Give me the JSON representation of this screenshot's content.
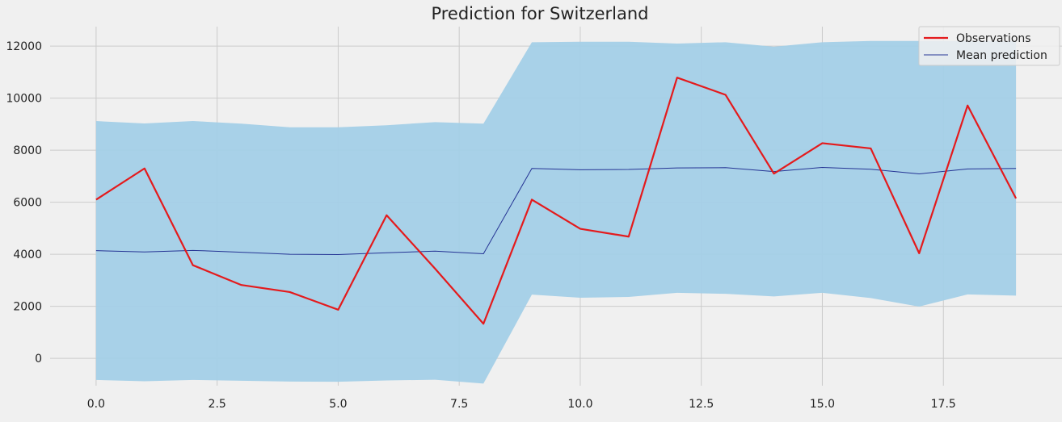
{
  "chart_data": {
    "type": "line",
    "title": "Prediction for Switzerland",
    "xlabel": "",
    "ylabel": "",
    "xlim": [
      -0.95,
      19.95
    ],
    "ylim": [
      -1050,
      12750
    ],
    "x_ticks": [
      0.0,
      2.5,
      5.0,
      7.5,
      10.0,
      12.5,
      15.0,
      17.5
    ],
    "x_tick_labels": [
      "0.0",
      "2.5",
      "5.0",
      "7.5",
      "10.0",
      "12.5",
      "15.0",
      "17.5"
    ],
    "y_ticks": [
      0,
      2000,
      4000,
      6000,
      8000,
      10000,
      12000
    ],
    "y_tick_labels": [
      "0",
      "2000",
      "4000",
      "6000",
      "8000",
      "10000",
      "12000"
    ],
    "grid": true,
    "legend_position": "top-right",
    "x": [
      0,
      1,
      2,
      3,
      4,
      5,
      6,
      7,
      8,
      9,
      10,
      11,
      12,
      13,
      14,
      15,
      16,
      17,
      18,
      19
    ],
    "band": {
      "upper": [
        9120,
        9030,
        9120,
        9020,
        8880,
        8880,
        8960,
        9080,
        9020,
        12150,
        12170,
        12170,
        12100,
        12150,
        11980,
        12150,
        12200,
        12200,
        12190,
        12190
      ],
      "lower": [
        -830,
        -880,
        -830,
        -860,
        -890,
        -900,
        -850,
        -820,
        -970,
        2450,
        2330,
        2360,
        2520,
        2480,
        2380,
        2520,
        2320,
        1990,
        2460,
        2410
      ],
      "color": "#a3cfe7"
    },
    "series": [
      {
        "name": "Observations",
        "color": "#e41a1c",
        "values": [
          6100,
          7300,
          3580,
          2820,
          2550,
          1870,
          5500,
          3450,
          1330,
          6100,
          4980,
          4680,
          10790,
          10130,
          7100,
          8270,
          8070,
          4040,
          9720,
          6150
        ]
      },
      {
        "name": "Mean prediction",
        "color": "#253494",
        "values": [
          4140,
          4090,
          4150,
          4080,
          4000,
          3990,
          4060,
          4120,
          4020,
          7300,
          7250,
          7260,
          7320,
          7330,
          7180,
          7340,
          7270,
          7090,
          7280,
          7300
        ]
      }
    ]
  }
}
